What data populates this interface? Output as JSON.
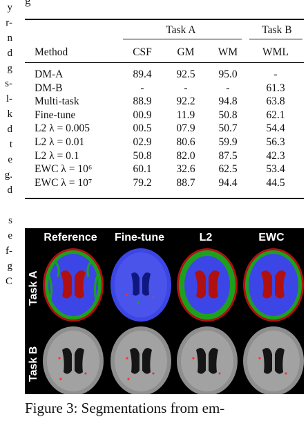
{
  "margin_fragments": [
    "y",
    "r-",
    "n",
    "d",
    "g",
    "s-",
    "l-",
    "k",
    "d",
    "t",
    "e",
    "g.",
    "d",
    "",
    "s",
    "e",
    "f-",
    "g",
    "C"
  ],
  "top_partial": "g",
  "table": {
    "group_headers": {
      "task_a": "Task A",
      "task_b": "Task B"
    },
    "columns": {
      "method": "Method",
      "csf": "CSF",
      "gm": "GM",
      "wm": "WM",
      "wml": "WML"
    },
    "rows": [
      {
        "method": "DM-A",
        "csf": "89.4",
        "gm": "92.5",
        "wm": "95.0",
        "wml": "-"
      },
      {
        "method": "DM-B",
        "csf": "-",
        "gm": "-",
        "wm": "-",
        "wml": "61.3"
      },
      {
        "method": "Multi-task",
        "csf": "88.9",
        "gm": "92.2",
        "wm": "94.8",
        "wml": "63.8"
      },
      {
        "method": "Fine-tune",
        "csf": "00.9",
        "gm": "11.9",
        "wm": "50.8",
        "wml": "62.1"
      },
      {
        "method": "L2 λ = 0.005",
        "csf": "00.5",
        "gm": "07.9",
        "wm": "50.7",
        "wml": "54.4"
      },
      {
        "method": "L2 λ = 0.01",
        "csf": "02.9",
        "gm": "80.6",
        "wm": "59.9",
        "wml": "56.3"
      },
      {
        "method": "L2 λ = 0.1",
        "csf": "50.8",
        "gm": "82.0",
        "wm": "87.5",
        "wml": "42.3"
      },
      {
        "method": "EWC λ = 10⁶",
        "csf": "60.1",
        "gm": "32.6",
        "wm": "62.5",
        "wml": "53.4"
      },
      {
        "method": "EWC λ = 10⁷",
        "csf": "79.2",
        "gm": "88.7",
        "wm": "94.4",
        "wml": "44.5"
      }
    ]
  },
  "figure": {
    "column_labels": [
      "Reference",
      "Fine-tune",
      "L2",
      "EWC"
    ],
    "row_labels": [
      "Task A",
      "Task B"
    ],
    "colors": {
      "csf": "#b01010",
      "gm": "#1ea01e",
      "wm": "#3c46e6",
      "flair": "#9a9a9a",
      "lesion": "#ff3030"
    }
  },
  "caption": {
    "text": "Figure 3:  Segmentations from em-"
  }
}
